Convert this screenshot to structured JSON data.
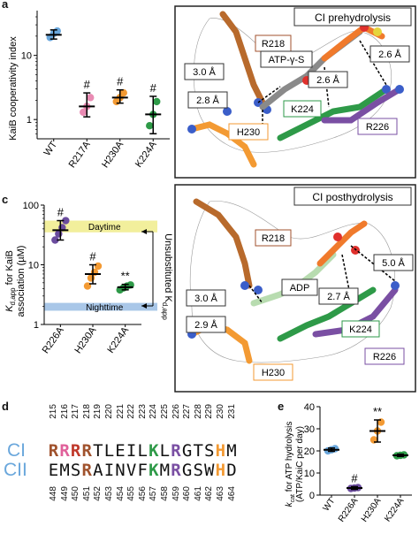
{
  "panels": {
    "a": "a",
    "b": "b",
    "c": "c",
    "d": "d",
    "e": "e"
  },
  "colors": {
    "wt": "#6aa7dc",
    "r217a": "#e98bb3",
    "h230a": "#f39a33",
    "k224a": "#2e9a48",
    "r226a": "#6b4c9e",
    "daytime": "#f2ef9c",
    "nighttime": "#a9c7e8",
    "r_brown": "#a0522d",
    "r_pink": "#e0609a",
    "r_red": "#c0392b",
    "k_green": "#2e9a48",
    "r_purple": "#7a4fa3",
    "h_orange": "#f39a33",
    "cii_blue": "#6aa7dc"
  },
  "chart_data": [
    {
      "panel": "a",
      "type": "scatter",
      "ylabel": "KaiB cooperativity index",
      "scale": "log",
      "ylim": [
        0.5,
        50
      ],
      "yticks": [
        "1",
        "10"
      ],
      "categories": [
        "WT",
        "R217A",
        "H230A",
        "K224A"
      ],
      "annotations": [
        "",
        "#",
        "#",
        "#"
      ],
      "means": [
        21,
        1.6,
        2.2,
        1.2
      ],
      "err_low": [
        18,
        1.1,
        1.8,
        0.6
      ],
      "err_high": [
        25,
        2.6,
        2.9,
        2.3
      ],
      "points": [
        [
          19,
          22,
          24
        ],
        [
          1.3,
          1.6,
          2.2
        ],
        [
          1.9,
          2.2,
          2.6
        ],
        [
          0.8,
          1.2,
          1.9
        ]
      ]
    },
    {
      "panel": "c",
      "type": "scatter",
      "ylabel_main": "K",
      "ylabel_sub": "d,app",
      "ylabel_rest": " for KaiB",
      "ylabel2": "association (µM)",
      "scale": "log",
      "ylim": [
        1,
        100
      ],
      "yticks": [
        "1",
        "10",
        "100"
      ],
      "categories": [
        "R226A",
        "H230A",
        "K224A"
      ],
      "annotations": [
        "#",
        "#",
        "**"
      ],
      "means": [
        38,
        7,
        4.2
      ],
      "err_low": [
        26,
        4.8,
        3.8
      ],
      "err_high": [
        55,
        10,
        4.7
      ],
      "points": [
        [
          26,
          33,
          42,
          55
        ],
        [
          4.4,
          6.0,
          7.5,
          9.5
        ],
        [
          3.8,
          4.1,
          4.4,
          4.6
        ]
      ],
      "bands": [
        {
          "label": "Daytime",
          "low": 35,
          "high": 55,
          "color": "#f2ef9c"
        },
        {
          "label": "Nighttime",
          "low": 1.7,
          "high": 2.3,
          "color": "#a9c7e8"
        }
      ],
      "side_label_a": "Unsubstituted K",
      "side_label_sub": "d,app"
    },
    {
      "panel": "e",
      "type": "scatter",
      "ylabel_main": "k",
      "ylabel_sub": "cat",
      "ylabel_rest": " for ATP hydrolysis",
      "ylabel2": "(ATP/KaiC per day)",
      "scale": "linear",
      "ylim": [
        0,
        40
      ],
      "yticks": [
        "0",
        "10",
        "20",
        "30",
        "40"
      ],
      "categories": [
        "WT",
        "R226A",
        "H230A",
        "K224A"
      ],
      "annotations": [
        "",
        "#",
        "**",
        ""
      ],
      "means": [
        20.5,
        3.2,
        29,
        18
      ],
      "err_low": [
        19.8,
        2.6,
        24,
        17.5
      ],
      "err_high": [
        21.3,
        3.8,
        34,
        18.5
      ],
      "points": [
        [
          20,
          20.5,
          21
        ],
        [
          3,
          3.2,
          3.4
        ],
        [
          25,
          29,
          33
        ],
        [
          17.8,
          18,
          18.2
        ]
      ]
    }
  ],
  "panel_b": {
    "title": "CI prehydrolysis",
    "labels": [
      "R218",
      "ATP-γ-S",
      "3.0 Å",
      "2.6 Å",
      "2.6 Å",
      "2.8 Å",
      "K224",
      "R226",
      "H230"
    ]
  },
  "panel_c_struct": {
    "title": "CI posthydrolysis",
    "labels": [
      "R218",
      "ADP",
      "5.0 Å",
      "3.0 Å",
      "2.7 Å",
      "2.9 Å",
      "K224",
      "R226",
      "H230"
    ]
  },
  "panel_d": {
    "top_numbers": [
      "215",
      "216",
      "217",
      "218",
      "219",
      "220",
      "221",
      "222",
      "223",
      "224",
      "225",
      "226",
      "227",
      "228",
      "229",
      "230",
      "231"
    ],
    "bottom_numbers": [
      "448",
      "449",
      "450",
      "451",
      "452",
      "453",
      "454",
      "455",
      "456",
      "457",
      "458",
      "459",
      "460",
      "461",
      "462",
      "463",
      "464"
    ],
    "ci_label": "CI",
    "cii_label": "CII",
    "ci_seq": [
      "R",
      "R",
      "R",
      "R",
      "T",
      "L",
      "E",
      "I",
      "L",
      "K",
      "L",
      "R",
      "G",
      "T",
      "S",
      "H",
      "M"
    ],
    "cii_seq": [
      "E",
      "M",
      "S",
      "R",
      "A",
      "I",
      "N",
      "V",
      "F",
      "K",
      "M",
      "R",
      "G",
      "S",
      "W",
      "H",
      "D"
    ]
  }
}
